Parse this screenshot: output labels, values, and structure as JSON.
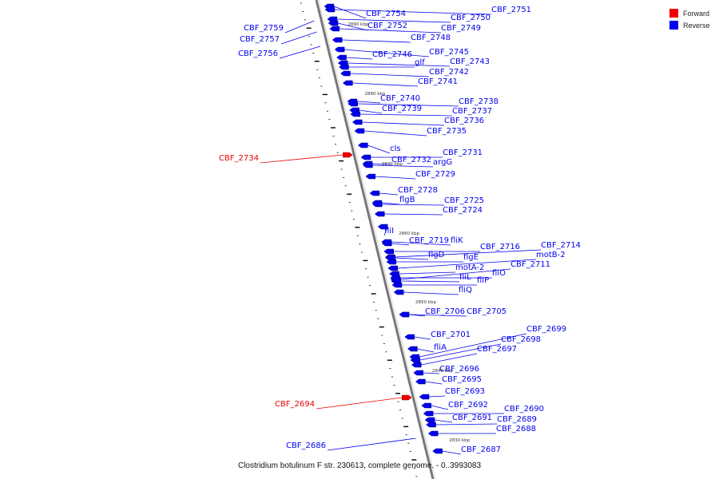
{
  "legend": [
    {
      "label": "Forward",
      "color": "#ee0000"
    },
    {
      "label": "Reverse",
      "color": "#0000ee"
    }
  ],
  "caption": "Clostridium botulinum F str. 230613, complete genome. - 0..3993083",
  "scale_ticks": [
    "2890 kbp",
    "2880 kbp",
    "2870 kbp",
    "2860 kbp",
    "2850 kbp",
    "2840 kbp",
    "2830 kbp"
  ],
  "genes": [
    {
      "name": "CBF_2759",
      "strand": "Reverse"
    },
    {
      "name": "CBF_2757",
      "strand": "Reverse"
    },
    {
      "name": "CBF_2756",
      "strand": "Reverse"
    },
    {
      "name": "CBF_2754",
      "strand": "Reverse"
    },
    {
      "name": "CBF_2752",
      "strand": "Reverse"
    },
    {
      "name": "CBF_2751",
      "strand": "Reverse"
    },
    {
      "name": "CBF_2750",
      "strand": "Reverse"
    },
    {
      "name": "CBF_2749",
      "strand": "Reverse"
    },
    {
      "name": "CBF_2748",
      "strand": "Reverse"
    },
    {
      "name": "CBF_2746",
      "strand": "Reverse"
    },
    {
      "name": "CBF_2745",
      "strand": "Reverse"
    },
    {
      "name": "CBF_2743",
      "strand": "Reverse"
    },
    {
      "name": "glf",
      "strand": "Reverse"
    },
    {
      "name": "CBF_2742",
      "strand": "Reverse"
    },
    {
      "name": "CBF_2741",
      "strand": "Reverse"
    },
    {
      "name": "CBF_2740",
      "strand": "Reverse"
    },
    {
      "name": "CBF_2738",
      "strand": "Reverse"
    },
    {
      "name": "CBF_2739",
      "strand": "Reverse"
    },
    {
      "name": "CBF_2737",
      "strand": "Reverse"
    },
    {
      "name": "CBF_2736",
      "strand": "Reverse"
    },
    {
      "name": "CBF_2735",
      "strand": "Reverse"
    },
    {
      "name": "cls",
      "strand": "Reverse"
    },
    {
      "name": "CBF_2734",
      "strand": "Forward"
    },
    {
      "name": "CBF_2731",
      "strand": "Reverse"
    },
    {
      "name": "CBF_2732",
      "strand": "Reverse"
    },
    {
      "name": "argG",
      "strand": "Reverse"
    },
    {
      "name": "CBF_2729",
      "strand": "Reverse"
    },
    {
      "name": "CBF_2728",
      "strand": "Reverse"
    },
    {
      "name": "flgB",
      "strand": "Reverse"
    },
    {
      "name": "CBF_2725",
      "strand": "Reverse"
    },
    {
      "name": "CBF_2724",
      "strand": "Reverse"
    },
    {
      "name": "fliI",
      "strand": "Reverse"
    },
    {
      "name": "CBF_2719",
      "strand": "Reverse"
    },
    {
      "name": "fliK",
      "strand": "Reverse"
    },
    {
      "name": "CBF_2716",
      "strand": "Reverse"
    },
    {
      "name": "CBF_2714",
      "strand": "Reverse"
    },
    {
      "name": "flgD",
      "strand": "Reverse"
    },
    {
      "name": "flgE",
      "strand": "Reverse"
    },
    {
      "name": "motB-2",
      "strand": "Reverse"
    },
    {
      "name": "motA-2",
      "strand": "Reverse"
    },
    {
      "name": "CBF_2711",
      "strand": "Reverse"
    },
    {
      "name": "fliO",
      "strand": "Reverse"
    },
    {
      "name": "fliL",
      "strand": "Reverse"
    },
    {
      "name": "fliP",
      "strand": "Reverse"
    },
    {
      "name": "fliQ",
      "strand": "Reverse"
    },
    {
      "name": "CBF_2706",
      "strand": "Reverse"
    },
    {
      "name": "CBF_2705",
      "strand": "Reverse"
    },
    {
      "name": "CBF_2701",
      "strand": "Reverse"
    },
    {
      "name": "CBF_2699",
      "strand": "Reverse"
    },
    {
      "name": "CBF_2698",
      "strand": "Reverse"
    },
    {
      "name": "fliA",
      "strand": "Reverse"
    },
    {
      "name": "CBF_2697",
      "strand": "Reverse"
    },
    {
      "name": "CBF_2696",
      "strand": "Reverse"
    },
    {
      "name": "CBF_2695",
      "strand": "Reverse"
    },
    {
      "name": "CBF_2693",
      "strand": "Reverse"
    },
    {
      "name": "CBF_2694",
      "strand": "Forward"
    },
    {
      "name": "CBF_2692",
      "strand": "Reverse"
    },
    {
      "name": "CBF_2690",
      "strand": "Reverse"
    },
    {
      "name": "CBF_2691",
      "strand": "Reverse"
    },
    {
      "name": "CBF_2689",
      "strand": "Reverse"
    },
    {
      "name": "CBF_2688",
      "strand": "Reverse"
    },
    {
      "name": "CBF_2686",
      "strand": "Reverse"
    },
    {
      "name": "CBF_2687",
      "strand": "Reverse"
    }
  ]
}
